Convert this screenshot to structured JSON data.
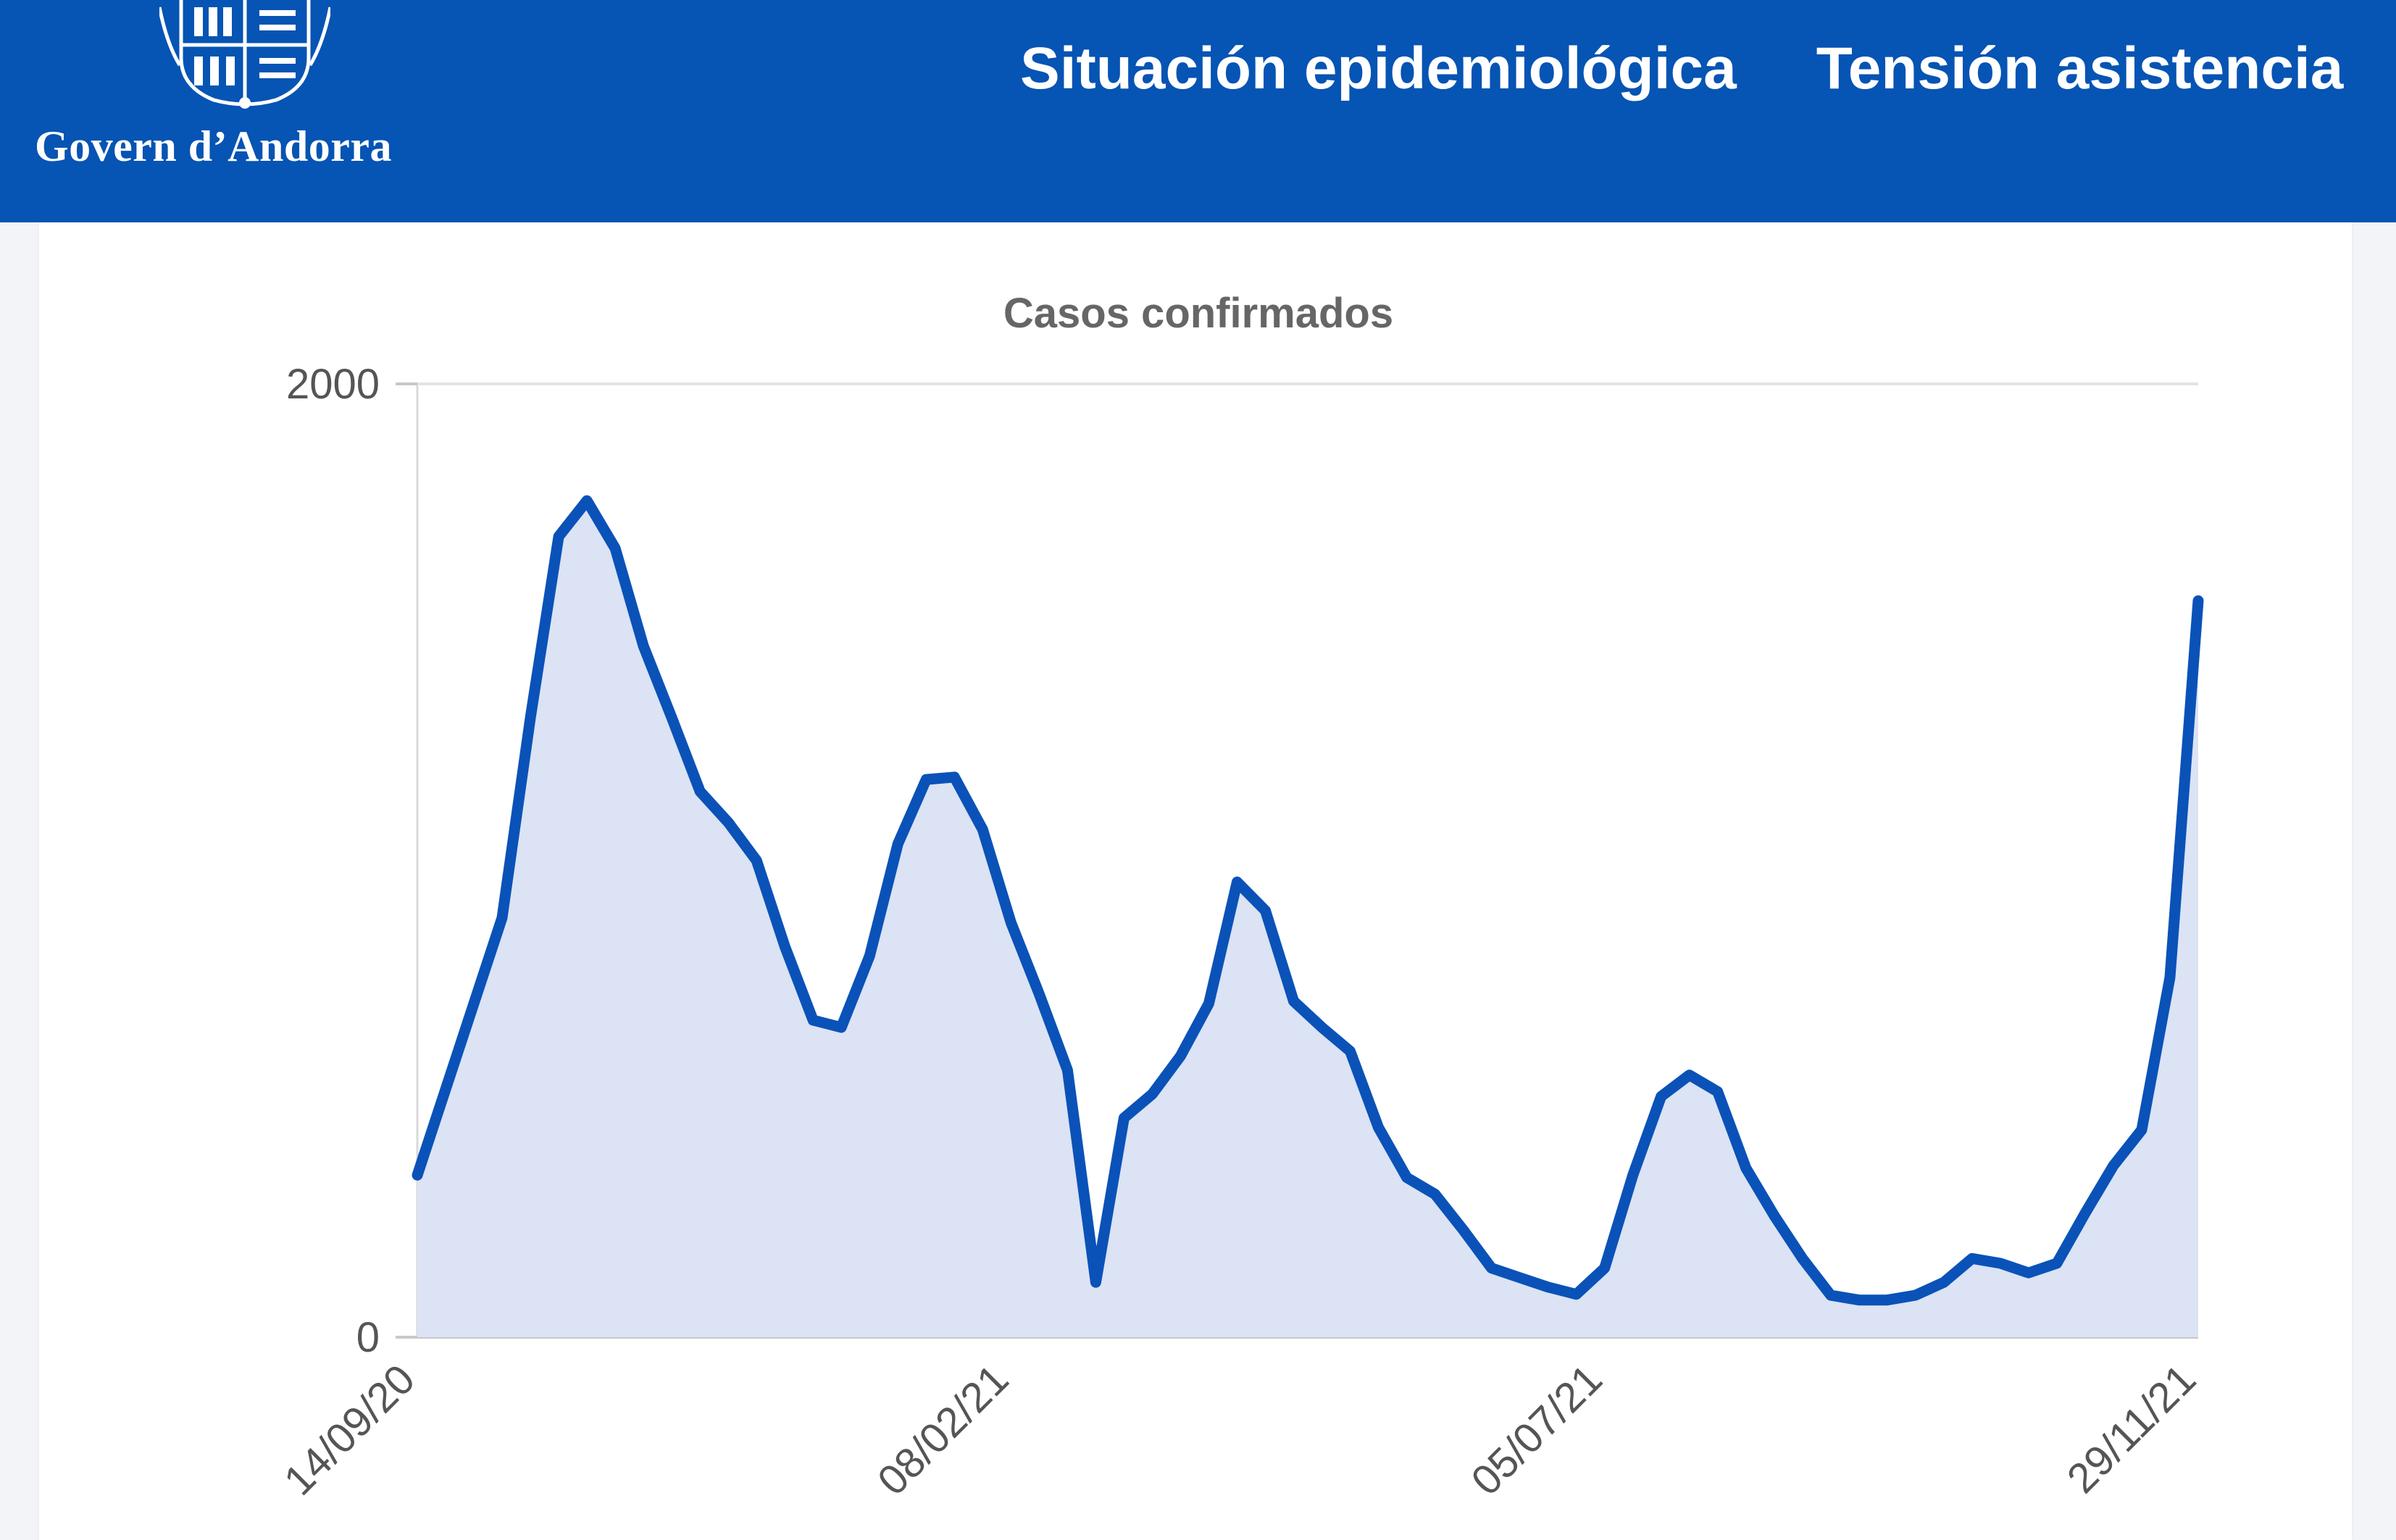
{
  "header": {
    "brand": "Govern d’Andorra",
    "nav": [
      "Situación epidemiológica",
      "Tensión asistencia"
    ],
    "colors": {
      "bar": "#0654b3",
      "text": "#ffffff"
    }
  },
  "chart_data": {
    "type": "area",
    "title": "Casos confirmados",
    "xlabel": "",
    "ylabel": "",
    "ylim": [
      0,
      2000
    ],
    "y_ticks": [
      "0",
      "2000"
    ],
    "x_ticks": [
      "14/09/20",
      "08/02/21",
      "05/07/21",
      "29/11/21"
    ],
    "grid": true,
    "x": [
      "14/09/20",
      "21/09/20",
      "28/09/20",
      "05/10/20",
      "12/10/20",
      "19/10/20",
      "26/10/20",
      "02/11/20",
      "09/11/20",
      "16/11/20",
      "23/11/20",
      "30/11/20",
      "07/12/20",
      "14/12/20",
      "21/12/20",
      "28/12/20",
      "04/01/21",
      "11/01/21",
      "18/01/21",
      "25/01/21",
      "01/02/21",
      "08/02/21",
      "15/02/21",
      "22/02/21",
      "01/03/21",
      "08/03/21",
      "15/03/21",
      "22/03/21",
      "29/03/21",
      "05/04/21",
      "12/04/21",
      "19/04/21",
      "26/04/21",
      "03/05/21",
      "10/05/21",
      "17/05/21",
      "24/05/21",
      "31/05/21",
      "07/06/21",
      "14/06/21",
      "21/06/21",
      "28/06/21",
      "05/07/21",
      "12/07/21",
      "19/07/21",
      "26/07/21",
      "02/08/21",
      "09/08/21",
      "16/08/21",
      "23/08/21",
      "30/08/21",
      "06/09/21",
      "13/09/21",
      "20/09/21",
      "27/09/21",
      "04/10/21",
      "11/10/21",
      "18/10/21",
      "25/10/21",
      "01/11/21",
      "08/11/21",
      "15/11/21",
      "22/11/21",
      "29/11/21"
    ],
    "series": [
      {
        "values": [
          340,
          520,
          700,
          880,
          1300,
          1680,
          1755,
          1655,
          1450,
          1300,
          1145,
          1080,
          1000,
          820,
          665,
          650,
          800,
          1035,
          1170,
          1175,
          1065,
          870,
          720,
          560,
          115,
          460,
          510,
          590,
          700,
          955,
          895,
          705,
          650,
          600,
          440,
          335,
          300,
          225,
          145,
          125,
          105,
          90,
          145,
          340,
          505,
          550,
          515,
          355,
          255,
          165,
          88,
          78,
          78,
          88,
          115,
          165,
          155,
          135,
          155,
          260,
          360,
          435,
          755,
          1545
        ],
        "color": "#0a52b8",
        "fill": "#dbe3f4"
      }
    ]
  }
}
